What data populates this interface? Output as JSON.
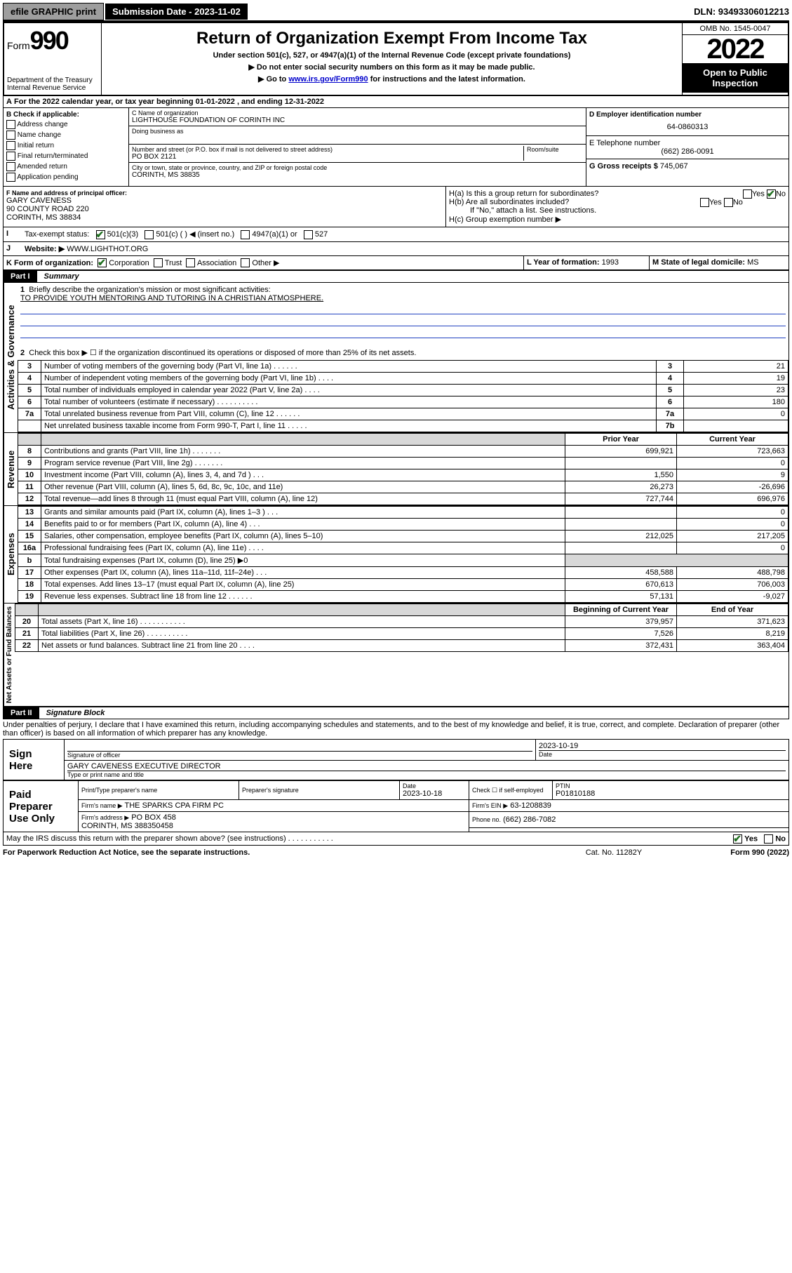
{
  "top": {
    "efile": "efile GRAPHIC print",
    "sub_date_label": "Submission Date - 2023-11-02",
    "dln": "DLN: 93493306012213"
  },
  "header": {
    "form_label": "Form",
    "form_num": "990",
    "dept": "Department of the Treasury\nInternal Revenue Service",
    "title": "Return of Organization Exempt From Income Tax",
    "subtitle": "Under section 501(c), 527, or 4947(a)(1) of the Internal Revenue Code (except private foundations)",
    "note1": "▶ Do not enter social security numbers on this form as it may be made public.",
    "note2_pre": "▶ Go to ",
    "note2_link": "www.irs.gov/Form990",
    "note2_post": " for instructions and the latest information.",
    "omb": "OMB No. 1545-0047",
    "year": "2022",
    "open": "Open to Public Inspection"
  },
  "A": {
    "text": "For the 2022 calendar year, or tax year beginning 01-01-2022   , and ending 12-31-2022"
  },
  "B": {
    "label": "B Check if applicable:",
    "items": [
      "Address change",
      "Name change",
      "Initial return",
      "Final return/terminated",
      "Amended return",
      "Application pending"
    ]
  },
  "C": {
    "name_label": "C Name of organization",
    "name": "LIGHTHOUSE FOUNDATION OF CORINTH INC",
    "dba_label": "Doing business as",
    "addr_label": "Number and street (or P.O. box if mail is not delivered to street address)",
    "room_label": "Room/suite",
    "addr": "PO BOX 2121",
    "city_label": "City or town, state or province, country, and ZIP or foreign postal code",
    "city": "CORINTH, MS  38835"
  },
  "D": {
    "label": "D Employer identification number",
    "value": "64-0860313"
  },
  "E": {
    "label": "E Telephone number",
    "value": "(662) 286-0091"
  },
  "G": {
    "label": "G Gross receipts $",
    "value": "745,067"
  },
  "F": {
    "label": "F Name and address of principal officer:",
    "name": "GARY CAVENESS",
    "addr1": "90 COUNTY ROAD 220",
    "addr2": "CORINTH, MS  38834"
  },
  "H": {
    "a": "H(a)  Is this a group return for subordinates?",
    "b": "H(b)  Are all subordinates included?",
    "b_note": "If \"No,\" attach a list. See instructions.",
    "c": "H(c)  Group exemption number ▶",
    "yes": "Yes",
    "no": "No"
  },
  "I": {
    "label": "Tax-exempt status:",
    "o1": "501(c)(3)",
    "o2": "501(c) (  ) ◀ (insert no.)",
    "o3": "4947(a)(1) or",
    "o4": "527"
  },
  "J": {
    "label": "Website: ▶",
    "value": "WWW.LIGHTHOT.ORG"
  },
  "K": {
    "label": "K Form of organization:",
    "o1": "Corporation",
    "o2": "Trust",
    "o3": "Association",
    "o4": "Other ▶"
  },
  "L": {
    "label": "L Year of formation:",
    "value": "1993"
  },
  "M": {
    "label": "M State of legal domicile:",
    "value": "MS"
  },
  "partI": {
    "num": "Part I",
    "title": "Summary"
  },
  "summary": {
    "q1": "Briefly describe the organization's mission or most significant activities:",
    "mission": "TO PROVIDE YOUTH MENTORING AND TUTORING IN A CHRISTIAN ATMOSPHERE.",
    "q2": "Check this box ▶ ☐  if the organization discontinued its operations or disposed of more than 25% of its net assets.",
    "prior": "Prior Year",
    "current": "Current Year",
    "boy": "Beginning of Current Year",
    "eoy": "End of Year",
    "rows_gov": [
      {
        "n": "3",
        "t": "Number of voting members of the governing body (Part VI, line 1a)  .   .   .   .   .   .",
        "box": "3",
        "v": "21"
      },
      {
        "n": "4",
        "t": "Number of independent voting members of the governing body (Part VI, line 1b)  .   .   .   .",
        "box": "4",
        "v": "19"
      },
      {
        "n": "5",
        "t": "Total number of individuals employed in calendar year 2022 (Part V, line 2a)  .   .   .   .",
        "box": "5",
        "v": "23"
      },
      {
        "n": "6",
        "t": "Total number of volunteers (estimate if necessary)  .   .   .   .   .   .   .   .   .   .",
        "box": "6",
        "v": "180"
      },
      {
        "n": "7a",
        "t": "Total unrelated business revenue from Part VIII, column (C), line 12  .   .   .   .   .   .",
        "box": "7a",
        "v": "0"
      },
      {
        "n": "",
        "t": "Net unrelated business taxable income from Form 990-T, Part I, line 11  .   .   .   .   .",
        "box": "7b",
        "v": ""
      }
    ],
    "rows_rev": [
      {
        "n": "8",
        "t": "Contributions and grants (Part VIII, line 1h)  .   .   .   .   .   .   .",
        "p": "699,921",
        "c": "723,663"
      },
      {
        "n": "9",
        "t": "Program service revenue (Part VIII, line 2g)  .   .   .   .   .   .   .",
        "p": "",
        "c": "0"
      },
      {
        "n": "10",
        "t": "Investment income (Part VIII, column (A), lines 3, 4, and 7d )  .   .   .",
        "p": "1,550",
        "c": "9"
      },
      {
        "n": "11",
        "t": "Other revenue (Part VIII, column (A), lines 5, 6d, 8c, 9c, 10c, and 11e)",
        "p": "26,273",
        "c": "-26,696"
      },
      {
        "n": "12",
        "t": "Total revenue—add lines 8 through 11 (must equal Part VIII, column (A), line 12)",
        "p": "727,744",
        "c": "696,976"
      }
    ],
    "rows_exp": [
      {
        "n": "13",
        "t": "Grants and similar amounts paid (Part IX, column (A), lines 1–3 )  .   .   .",
        "p": "",
        "c": "0"
      },
      {
        "n": "14",
        "t": "Benefits paid to or for members (Part IX, column (A), line 4)  .   .   .",
        "p": "",
        "c": "0"
      },
      {
        "n": "15",
        "t": "Salaries, other compensation, employee benefits (Part IX, column (A), lines 5–10)",
        "p": "212,025",
        "c": "217,205"
      },
      {
        "n": "16a",
        "t": "Professional fundraising fees (Part IX, column (A), line 11e)  .   .   .   .",
        "p": "",
        "c": "0"
      },
      {
        "n": "b",
        "t": "Total fundraising expenses (Part IX, column (D), line 25) ▶0",
        "p": null,
        "c": null
      },
      {
        "n": "17",
        "t": "Other expenses (Part IX, column (A), lines 11a–11d, 11f–24e)  .   .   .",
        "p": "458,588",
        "c": "488,798"
      },
      {
        "n": "18",
        "t": "Total expenses. Add lines 13–17 (must equal Part IX, column (A), line 25)",
        "p": "670,613",
        "c": "706,003"
      },
      {
        "n": "19",
        "t": "Revenue less expenses. Subtract line 18 from line 12  .   .   .   .   .   .",
        "p": "57,131",
        "c": "-9,027"
      }
    ],
    "rows_net": [
      {
        "n": "20",
        "t": "Total assets (Part X, line 16)  .   .   .   .   .   .   .   .   .   .   .",
        "p": "379,957",
        "c": "371,623"
      },
      {
        "n": "21",
        "t": "Total liabilities (Part X, line 26)  .   .   .   .   .   .   .   .   .   .",
        "p": "7,526",
        "c": "8,219"
      },
      {
        "n": "22",
        "t": "Net assets or fund balances. Subtract line 21 from line 20  .   .   .   .",
        "p": "372,431",
        "c": "363,404"
      }
    ]
  },
  "vlabels": {
    "gov": "Activities & Governance",
    "rev": "Revenue",
    "exp": "Expenses",
    "net": "Net Assets or Fund Balances"
  },
  "partII": {
    "num": "Part II",
    "title": "Signature Block"
  },
  "sig": {
    "decl": "Under penalties of perjury, I declare that I have examined this return, including accompanying schedules and statements, and to the best of my knowledge and belief, it is true, correct, and complete. Declaration of preparer (other than officer) is based on all information of which preparer has any knowledge.",
    "sign_here": "Sign Here",
    "sig_officer": "Signature of officer",
    "date_label": "Date",
    "date": "2023-10-19",
    "name_title": "GARY CAVENESS EXECUTIVE DIRECTOR",
    "type_name": "Type or print name and title",
    "paid": "Paid Preparer Use Only",
    "prep_name_label": "Print/Type preparer's name",
    "prep_sig_label": "Preparer's signature",
    "prep_date_label": "Date",
    "prep_date": "2023-10-18",
    "check_if": "Check ☐ if self-employed",
    "ptin_label": "PTIN",
    "ptin": "P01810188",
    "firm_name_label": "Firm's name    ▶",
    "firm_name": "THE SPARKS CPA FIRM PC",
    "firm_ein_label": "Firm's EIN ▶",
    "firm_ein": "63-1208839",
    "firm_addr_label": "Firm's address ▶",
    "firm_addr1": "PO BOX 458",
    "firm_addr2": "CORINTH, MS  388350458",
    "phone_label": "Phone no.",
    "phone": "(662) 286-7082",
    "discuss": "May the IRS discuss this return with the preparer shown above? (see instructions)  .   .   .   .   .   .   .   .   .   .   ."
  },
  "footer": {
    "left": "For Paperwork Reduction Act Notice, see the separate instructions.",
    "mid": "Cat. No. 11282Y",
    "right": "Form 990 (2022)"
  }
}
